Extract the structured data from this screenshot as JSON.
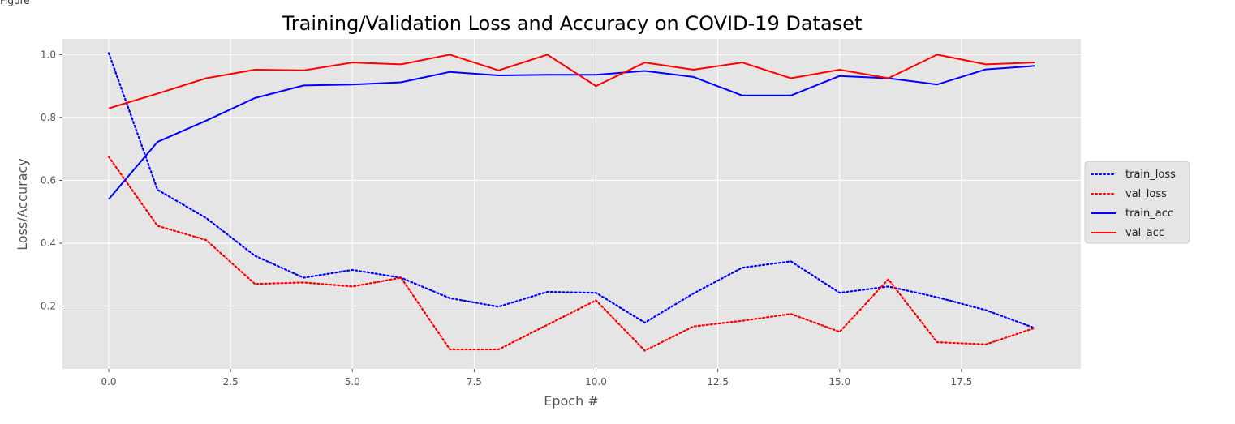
{
  "figure_label": "Figure",
  "chart_data": {
    "type": "line",
    "title": "Training/Validation Loss and Accuracy on COVID-19 Dataset",
    "xlabel": "Epoch #",
    "ylabel": "Loss/Accuracy",
    "xlim": [
      -0.95,
      19.95
    ],
    "ylim": [
      0.0,
      1.05
    ],
    "xticks": [
      0.0,
      2.5,
      5.0,
      7.5,
      10.0,
      12.5,
      15.0,
      17.5
    ],
    "xtick_labels": [
      "0.0",
      "2.5",
      "5.0",
      "7.5",
      "10.0",
      "12.5",
      "15.0",
      "17.5"
    ],
    "yticks": [
      0.2,
      0.4,
      0.6,
      0.8,
      1.0
    ],
    "ytick_labels": [
      "0.2",
      "0.4",
      "0.6",
      "0.8",
      "1.0"
    ],
    "grid": true,
    "legend_position": "center-right outside",
    "x": [
      0,
      1,
      2,
      3,
      4,
      5,
      6,
      7,
      8,
      9,
      10,
      11,
      12,
      13,
      14,
      15,
      16,
      17,
      18,
      19
    ],
    "series": [
      {
        "name": "train_loss",
        "color": "#0000ff",
        "style": "dotted",
        "values": [
          1.005,
          0.57,
          0.48,
          0.36,
          0.29,
          0.315,
          0.29,
          0.225,
          0.198,
          0.245,
          0.242,
          0.147,
          0.24,
          0.322,
          0.342,
          0.242,
          0.262,
          0.228,
          0.187,
          0.13
        ]
      },
      {
        "name": "val_loss",
        "color": "#ff0000",
        "style": "dotted",
        "values": [
          0.675,
          0.455,
          0.41,
          0.27,
          0.275,
          0.262,
          0.29,
          0.062,
          0.062,
          0.14,
          0.218,
          0.058,
          0.135,
          0.153,
          0.175,
          0.118,
          0.285,
          0.085,
          0.078,
          0.13
        ]
      },
      {
        "name": "train_acc",
        "color": "#0000ff",
        "style": "solid",
        "values": [
          0.54,
          0.722,
          0.79,
          0.862,
          0.902,
          0.905,
          0.912,
          0.945,
          0.934,
          0.936,
          0.936,
          0.948,
          0.929,
          0.87,
          0.87,
          0.932,
          0.925,
          0.905,
          0.953,
          0.964
        ]
      },
      {
        "name": "val_acc",
        "color": "#ff0000",
        "style": "solid",
        "values": [
          0.829,
          0.876,
          0.925,
          0.952,
          0.95,
          0.975,
          0.969,
          1.0,
          0.95,
          1.0,
          0.9,
          0.975,
          0.952,
          0.975,
          0.925,
          0.952,
          0.925,
          1.0,
          0.969,
          0.975
        ]
      }
    ]
  }
}
